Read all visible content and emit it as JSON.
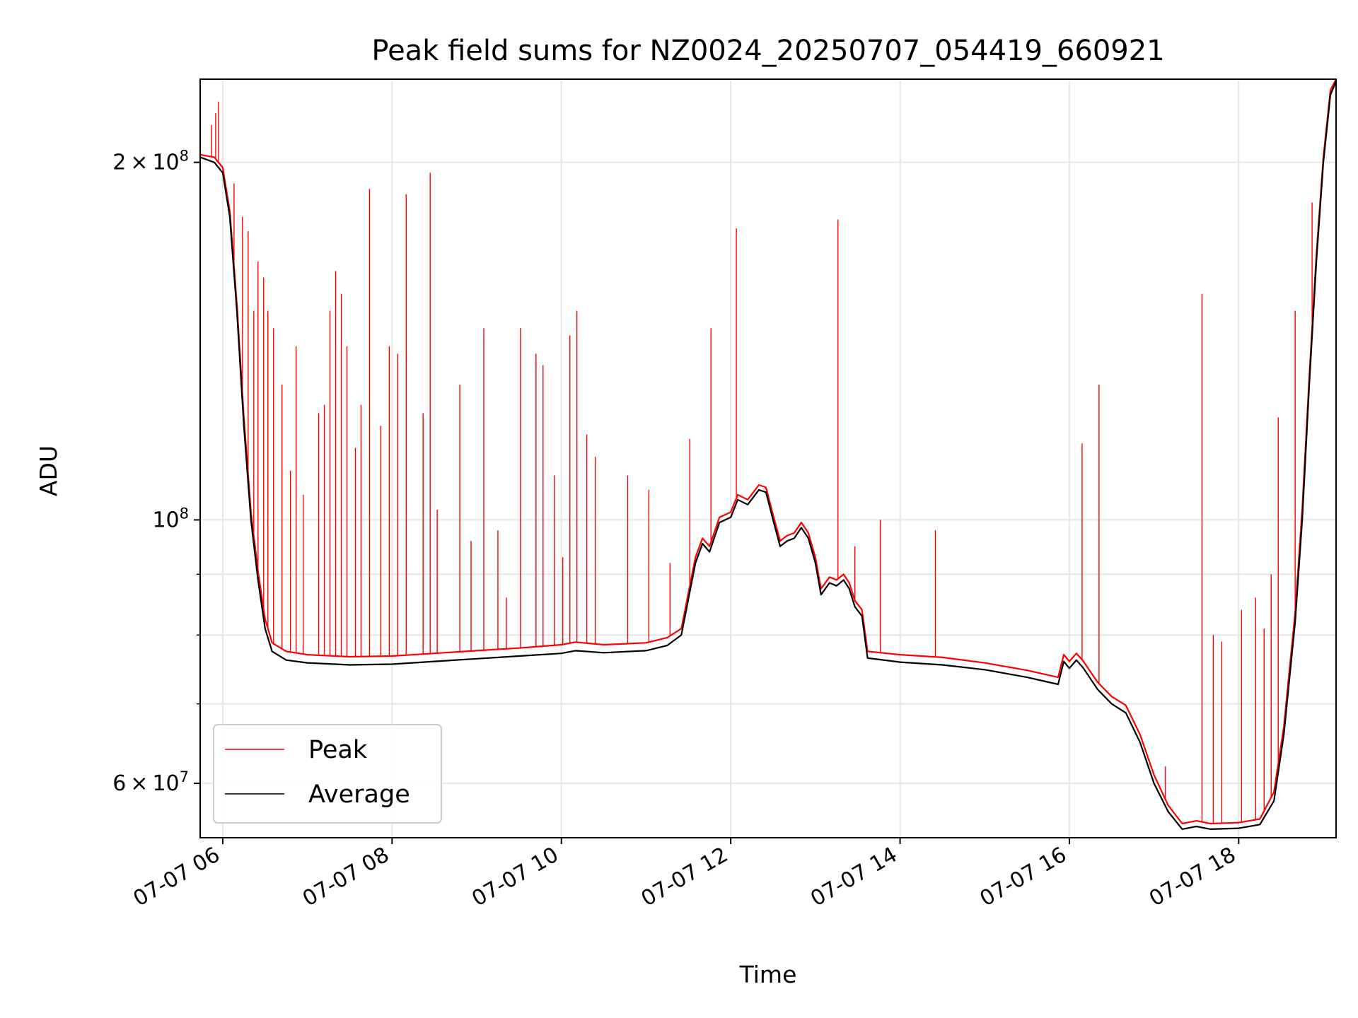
{
  "chart_data": {
    "type": "line",
    "title": "Peak field sums for NZ0024_20250707_054419_660921",
    "xlabel": "Time",
    "ylabel": "ADU",
    "yscale": "log",
    "xlim": [
      "2025-07-07 05:44",
      "2025-07-07 19:09"
    ],
    "ylim": [
      54000000,
      235000000
    ],
    "grid": true,
    "legend_position": "lower left",
    "x_tick_labels": [
      "07-07 06",
      "07-07 08",
      "07-07 10",
      "07-07 12",
      "07-07 14",
      "07-07 16",
      "07-07 18"
    ],
    "y_tick_labels": [
      {
        "value": 60000000,
        "mantissa": "6",
        "exponent": "7"
      },
      {
        "value": 100000000,
        "mantissa": "",
        "exponent": "8"
      },
      {
        "value": 200000000,
        "mantissa": "2",
        "exponent": "8"
      }
    ],
    "series": [
      {
        "name": "Average",
        "color": "#000000",
        "points": [
          [
            "2025-07-07 05:44",
            202000000
          ],
          [
            "2025-07-07 05:54",
            200000000
          ],
          [
            "2025-07-07 06:00",
            196000000
          ],
          [
            "2025-07-07 06:05",
            180000000
          ],
          [
            "2025-07-07 06:10",
            150000000
          ],
          [
            "2025-07-07 06:15",
            120000000
          ],
          [
            "2025-07-07 06:20",
            100000000
          ],
          [
            "2025-07-07 06:25",
            89000000
          ],
          [
            "2025-07-07 06:30",
            81000000
          ],
          [
            "2025-07-07 06:35",
            77500000
          ],
          [
            "2025-07-07 06:45",
            76200000
          ],
          [
            "2025-07-07 07:00",
            75800000
          ],
          [
            "2025-07-07 07:30",
            75500000
          ],
          [
            "2025-07-07 08:00",
            75600000
          ],
          [
            "2025-07-07 08:30",
            76000000
          ],
          [
            "2025-07-07 09:00",
            76400000
          ],
          [
            "2025-07-07 09:30",
            76800000
          ],
          [
            "2025-07-07 10:00",
            77200000
          ],
          [
            "2025-07-07 10:10",
            77600000
          ],
          [
            "2025-07-07 10:30",
            77300000
          ],
          [
            "2025-07-07 11:00",
            77600000
          ],
          [
            "2025-07-07 11:15",
            78400000
          ],
          [
            "2025-07-07 11:25",
            80000000
          ],
          [
            "2025-07-07 11:35",
            92000000
          ],
          [
            "2025-07-07 11:40",
            95500000
          ],
          [
            "2025-07-07 11:45",
            94000000
          ],
          [
            "2025-07-07 11:52",
            99500000
          ],
          [
            "2025-07-07 12:00",
            100500000
          ],
          [
            "2025-07-07 12:05",
            104000000
          ],
          [
            "2025-07-07 12:12",
            103000000
          ],
          [
            "2025-07-07 12:20",
            106000000
          ],
          [
            "2025-07-07 12:25",
            105500000
          ],
          [
            "2025-07-07 12:30",
            100000000
          ],
          [
            "2025-07-07 12:35",
            95000000
          ],
          [
            "2025-07-07 12:40",
            96000000
          ],
          [
            "2025-07-07 12:45",
            96500000
          ],
          [
            "2025-07-07 12:50",
            98500000
          ],
          [
            "2025-07-07 12:55",
            96500000
          ],
          [
            "2025-07-07 13:00",
            92000000
          ],
          [
            "2025-07-07 13:04",
            86500000
          ],
          [
            "2025-07-07 13:10",
            88500000
          ],
          [
            "2025-07-07 13:15",
            88000000
          ],
          [
            "2025-07-07 13:20",
            89000000
          ],
          [
            "2025-07-07 13:24",
            87500000
          ],
          [
            "2025-07-07 13:28",
            84500000
          ],
          [
            "2025-07-07 13:33",
            83000000
          ],
          [
            "2025-07-07 13:37",
            76500000
          ],
          [
            "2025-07-07 14:00",
            75900000
          ],
          [
            "2025-07-07 14:30",
            75500000
          ],
          [
            "2025-07-07 15:00",
            74800000
          ],
          [
            "2025-07-07 15:30",
            73700000
          ],
          [
            "2025-07-07 15:52",
            72700000
          ],
          [
            "2025-07-07 15:56",
            76000000
          ],
          [
            "2025-07-07 16:00",
            75000000
          ],
          [
            "2025-07-07 16:05",
            76200000
          ],
          [
            "2025-07-07 16:10",
            75000000
          ],
          [
            "2025-07-07 16:20",
            72000000
          ],
          [
            "2025-07-07 16:30",
            70000000
          ],
          [
            "2025-07-07 16:40",
            68800000
          ],
          [
            "2025-07-07 16:50",
            65000000
          ],
          [
            "2025-07-07 17:00",
            60000000
          ],
          [
            "2025-07-07 17:10",
            56800000
          ],
          [
            "2025-07-07 17:20",
            54900000
          ],
          [
            "2025-07-07 17:30",
            55200000
          ],
          [
            "2025-07-07 17:40",
            54900000
          ],
          [
            "2025-07-07 18:00",
            55000000
          ],
          [
            "2025-07-07 18:15",
            55400000
          ],
          [
            "2025-07-07 18:25",
            58000000
          ],
          [
            "2025-07-07 18:32",
            66000000
          ],
          [
            "2025-07-07 18:40",
            82000000
          ],
          [
            "2025-07-07 18:45",
            100000000
          ],
          [
            "2025-07-07 18:50",
            130000000
          ],
          [
            "2025-07-07 18:55",
            165000000
          ],
          [
            "2025-07-07 19:00",
            200000000
          ],
          [
            "2025-07-07 19:05",
            228000000
          ],
          [
            "2025-07-07 19:09",
            234000000
          ]
        ]
      },
      {
        "name": "Peak",
        "color": "#ff0000",
        "points": [
          [
            "2025-07-07 05:44",
            203000000
          ],
          [
            "2025-07-07 05:54",
            202000000
          ],
          [
            "2025-07-07 06:00",
            198000000
          ],
          [
            "2025-07-07 06:05",
            182000000
          ],
          [
            "2025-07-07 06:10",
            152000000
          ],
          [
            "2025-07-07 06:15",
            122000000
          ],
          [
            "2025-07-07 06:20",
            101500000
          ],
          [
            "2025-07-07 06:25",
            90500000
          ],
          [
            "2025-07-07 06:30",
            82500000
          ],
          [
            "2025-07-07 06:35",
            78800000
          ],
          [
            "2025-07-07 06:45",
            77500000
          ],
          [
            "2025-07-07 07:00",
            77000000
          ],
          [
            "2025-07-07 07:30",
            76700000
          ],
          [
            "2025-07-07 08:00",
            76800000
          ],
          [
            "2025-07-07 08:30",
            77200000
          ],
          [
            "2025-07-07 09:00",
            77600000
          ],
          [
            "2025-07-07 09:30",
            78000000
          ],
          [
            "2025-07-07 10:00",
            78500000
          ],
          [
            "2025-07-07 10:10",
            78900000
          ],
          [
            "2025-07-07 10:30",
            78500000
          ],
          [
            "2025-07-07 11:00",
            78800000
          ],
          [
            "2025-07-07 11:15",
            79600000
          ],
          [
            "2025-07-07 11:25",
            81000000
          ],
          [
            "2025-07-07 11:35",
            93000000
          ],
          [
            "2025-07-07 11:40",
            96500000
          ],
          [
            "2025-07-07 11:45",
            95000000
          ],
          [
            "2025-07-07 11:52",
            100500000
          ],
          [
            "2025-07-07 12:00",
            101500000
          ],
          [
            "2025-07-07 12:05",
            105000000
          ],
          [
            "2025-07-07 12:12",
            104000000
          ],
          [
            "2025-07-07 12:20",
            107000000
          ],
          [
            "2025-07-07 12:25",
            106500000
          ],
          [
            "2025-07-07 12:30",
            101000000
          ],
          [
            "2025-07-07 12:35",
            96000000
          ],
          [
            "2025-07-07 12:40",
            97000000
          ],
          [
            "2025-07-07 12:45",
            97500000
          ],
          [
            "2025-07-07 12:50",
            99500000
          ],
          [
            "2025-07-07 12:55",
            97500000
          ],
          [
            "2025-07-07 13:00",
            93000000
          ],
          [
            "2025-07-07 13:04",
            87500000
          ],
          [
            "2025-07-07 13:10",
            89500000
          ],
          [
            "2025-07-07 13:15",
            89000000
          ],
          [
            "2025-07-07 13:20",
            90000000
          ],
          [
            "2025-07-07 13:24",
            88500000
          ],
          [
            "2025-07-07 13:28",
            85500000
          ],
          [
            "2025-07-07 13:33",
            84000000
          ],
          [
            "2025-07-07 13:37",
            77500000
          ],
          [
            "2025-07-07 14:00",
            77000000
          ],
          [
            "2025-07-07 14:30",
            76600000
          ],
          [
            "2025-07-07 15:00",
            75800000
          ],
          [
            "2025-07-07 15:30",
            74700000
          ],
          [
            "2025-07-07 15:52",
            73700000
          ],
          [
            "2025-07-07 15:56",
            77000000
          ],
          [
            "2025-07-07 16:00",
            76000000
          ],
          [
            "2025-07-07 16:05",
            77200000
          ],
          [
            "2025-07-07 16:10",
            76000000
          ],
          [
            "2025-07-07 16:20",
            73000000
          ],
          [
            "2025-07-07 16:30",
            71000000
          ],
          [
            "2025-07-07 16:40",
            69800000
          ],
          [
            "2025-07-07 16:50",
            66000000
          ],
          [
            "2025-07-07 17:00",
            61000000
          ],
          [
            "2025-07-07 17:10",
            57500000
          ],
          [
            "2025-07-07 17:20",
            55500000
          ],
          [
            "2025-07-07 17:30",
            55800000
          ],
          [
            "2025-07-07 17:40",
            55500000
          ],
          [
            "2025-07-07 18:00",
            55600000
          ],
          [
            "2025-07-07 18:15",
            56000000
          ],
          [
            "2025-07-07 18:25",
            59000000
          ],
          [
            "2025-07-07 18:32",
            67000000
          ],
          [
            "2025-07-07 18:40",
            83500000
          ],
          [
            "2025-07-07 18:45",
            102000000
          ],
          [
            "2025-07-07 18:50",
            132000000
          ],
          [
            "2025-07-07 18:55",
            167000000
          ],
          [
            "2025-07-07 19:00",
            202000000
          ],
          [
            "2025-07-07 19:05",
            230000000
          ],
          [
            "2025-07-07 19:09",
            235000000
          ]
        ],
        "spikes": [
          [
            "2025-07-07 05:52",
            215000000
          ],
          [
            "2025-07-07 05:55",
            220000000
          ],
          [
            "2025-07-07 05:57",
            225000000
          ],
          [
            "2025-07-07 06:08",
            192000000
          ],
          [
            "2025-07-07 06:14",
            180000000
          ],
          [
            "2025-07-07 06:18",
            175000000
          ],
          [
            "2025-07-07 06:22",
            150000000
          ],
          [
            "2025-07-07 06:25",
            165000000
          ],
          [
            "2025-07-07 06:29",
            160000000
          ],
          [
            "2025-07-07 06:32",
            150000000
          ],
          [
            "2025-07-07 06:36",
            145000000
          ],
          [
            "2025-07-07 06:42",
            130000000
          ],
          [
            "2025-07-07 06:48",
            110000000
          ],
          [
            "2025-07-07 06:52",
            140000000
          ],
          [
            "2025-07-07 06:57",
            105000000
          ],
          [
            "2025-07-07 07:08",
            123000000
          ],
          [
            "2025-07-07 07:12",
            125000000
          ],
          [
            "2025-07-07 07:16",
            150000000
          ],
          [
            "2025-07-07 07:20",
            162000000
          ],
          [
            "2025-07-07 07:24",
            155000000
          ],
          [
            "2025-07-07 07:28",
            140000000
          ],
          [
            "2025-07-07 07:34",
            115000000
          ],
          [
            "2025-07-07 07:38",
            125000000
          ],
          [
            "2025-07-07 07:44",
            190000000
          ],
          [
            "2025-07-07 07:52",
            120000000
          ],
          [
            "2025-07-07 07:58",
            140000000
          ],
          [
            "2025-07-07 08:04",
            138000000
          ],
          [
            "2025-07-07 08:10",
            188000000
          ],
          [
            "2025-07-07 08:22",
            123000000
          ],
          [
            "2025-07-07 08:27",
            196000000
          ],
          [
            "2025-07-07 08:32",
            102000000
          ],
          [
            "2025-07-07 08:48",
            130000000
          ],
          [
            "2025-07-07 08:56",
            96000000
          ],
          [
            "2025-07-07 09:05",
            145000000
          ],
          [
            "2025-07-07 09:15",
            98000000
          ],
          [
            "2025-07-07 09:21",
            86000000
          ],
          [
            "2025-07-07 09:31",
            145000000
          ],
          [
            "2025-07-07 09:42",
            138000000
          ],
          [
            "2025-07-07 09:47",
            135000000
          ],
          [
            "2025-07-07 09:55",
            109000000
          ],
          [
            "2025-07-07 10:01",
            93000000
          ],
          [
            "2025-07-07 10:06",
            143000000
          ],
          [
            "2025-07-07 10:11",
            150000000
          ],
          [
            "2025-07-07 10:18",
            118000000
          ],
          [
            "2025-07-07 10:24",
            113000000
          ],
          [
            "2025-07-07 10:47",
            109000000
          ],
          [
            "2025-07-07 11:02",
            106000000
          ],
          [
            "2025-07-07 11:17",
            92000000
          ],
          [
            "2025-07-07 11:31",
            117000000
          ],
          [
            "2025-07-07 11:46",
            145000000
          ],
          [
            "2025-07-07 12:04",
            176000000
          ],
          [
            "2025-07-07 13:16",
            179000000
          ],
          [
            "2025-07-07 13:28",
            95000000
          ],
          [
            "2025-07-07 13:46",
            100000000
          ],
          [
            "2025-07-07 14:25",
            98000000
          ],
          [
            "2025-07-07 16:09",
            116000000
          ],
          [
            "2025-07-07 16:21",
            130000000
          ],
          [
            "2025-07-07 17:08",
            62000000
          ],
          [
            "2025-07-07 17:34",
            155000000
          ],
          [
            "2025-07-07 17:42",
            80000000
          ],
          [
            "2025-07-07 17:48",
            79000000
          ],
          [
            "2025-07-07 18:02",
            84000000
          ],
          [
            "2025-07-07 18:12",
            86000000
          ],
          [
            "2025-07-07 18:18",
            81000000
          ],
          [
            "2025-07-07 18:23",
            90000000
          ],
          [
            "2025-07-07 18:28",
            122000000
          ],
          [
            "2025-07-07 18:40",
            150000000
          ],
          [
            "2025-07-07 18:52",
            185000000
          ]
        ]
      }
    ]
  }
}
